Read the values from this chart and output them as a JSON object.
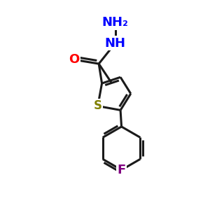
{
  "background_color": "#ffffff",
  "bond_color": "#1a1a1a",
  "bond_width": 2.2,
  "atom_colors": {
    "O": "#ff0000",
    "S": "#808000",
    "N": "#0000ff",
    "F": "#800080"
  }
}
